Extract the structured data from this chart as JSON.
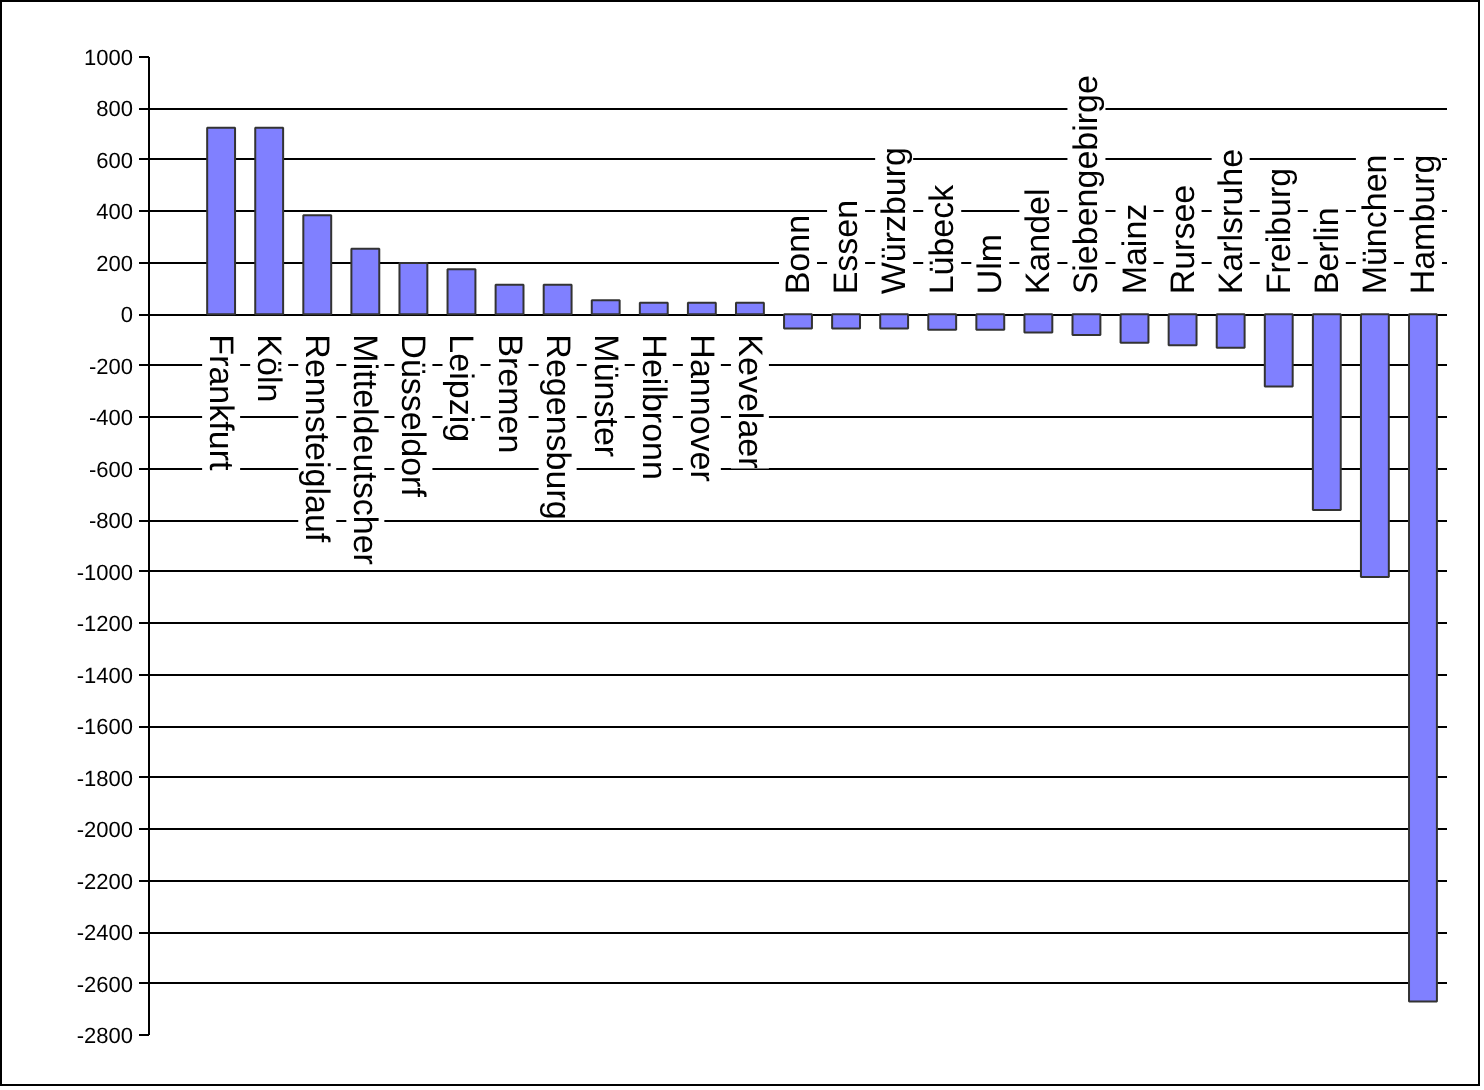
{
  "chart_data": {
    "type": "bar",
    "categories": [
      null,
      "Frankfurt",
      "Köln",
      "Rennsteiglauf",
      "Mitteldeutscher",
      "Düsseldorf",
      "Leipzig",
      "Bremen",
      "Regensburg",
      "Münster",
      "Heilbronn",
      "Hannover",
      "Kevelaer",
      "Bonn",
      "Essen",
      "Würzburg",
      "Lübeck",
      "Ulm",
      "Kandel",
      "Siebengebirge",
      "Mainz",
      "Rursee",
      "Karlsruhe",
      "Freiburg",
      "Berlin",
      "München",
      "Hamburg"
    ],
    "values": [
      null,
      725,
      725,
      385,
      255,
      200,
      175,
      115,
      115,
      55,
      45,
      45,
      45,
      -55,
      -55,
      -55,
      -60,
      -60,
      -70,
      -80,
      -110,
      -120,
      -130,
      -280,
      -760,
      -1020,
      -2670
    ],
    "color": "#8080ff",
    "ylim": [
      -2800,
      1000
    ],
    "yticks": [
      -2800,
      -2600,
      -2400,
      -2200,
      -2000,
      -1800,
      -1600,
      -1400,
      -1200,
      -1000,
      -800,
      -600,
      -400,
      -200,
      0,
      200,
      400,
      600,
      800,
      1000
    ],
    "grid": "y"
  }
}
